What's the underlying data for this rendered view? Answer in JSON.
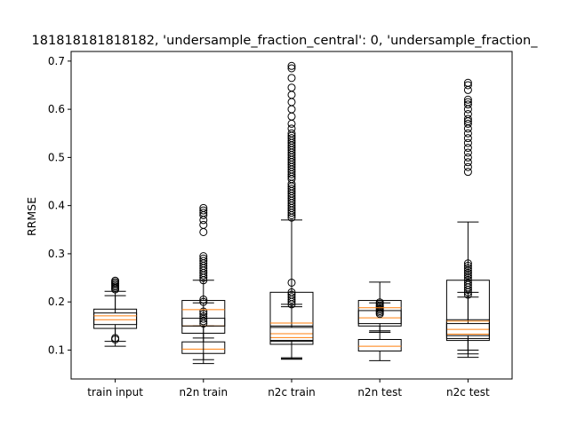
{
  "chart_data": {
    "type": "boxplot",
    "title": "181818181818182, 'undersample_fraction_central': 0, 'undersample_fraction_",
    "xlabel": "",
    "ylabel": "RRMSE",
    "ylim": [
      0.04,
      0.72
    ],
    "yticks": [
      "0.1",
      "0.2",
      "0.3",
      "0.4",
      "0.5",
      "0.6",
      "0.7"
    ],
    "categories": [
      "train input",
      "n2n train",
      "n2c train",
      "n2n test",
      "n2c test"
    ],
    "grid": false,
    "colors": {
      "box": "#000000",
      "median": "#ff7f0e",
      "flier": "#000000"
    },
    "boxes": [
      {
        "category": "train input",
        "layers": [
          {
            "whislo": 0.108,
            "q1": 0.145,
            "med": 0.163,
            "q3": 0.185,
            "whishi": 0.222,
            "fliers": [
              0.122,
              0.125,
              0.226,
              0.229,
              0.232,
              0.235,
              0.238,
              0.241,
              0.244
            ]
          },
          {
            "whislo": 0.118,
            "q1": 0.153,
            "med": 0.171,
            "q3": 0.177,
            "whishi": 0.213,
            "fliers": []
          }
        ]
      },
      {
        "category": "n2n train",
        "layers": [
          {
            "whislo": 0.072,
            "q1": 0.093,
            "med": 0.102,
            "q3": 0.117,
            "whishi": 0.15,
            "fliers": [
              0.155,
              0.16,
              0.165,
              0.17,
              0.175,
              0.18
            ]
          },
          {
            "whislo": 0.08,
            "q1": 0.135,
            "med": 0.15,
            "q3": 0.166,
            "whishi": 0.198,
            "fliers": [
              0.2,
              0.205,
              0.245,
              0.25,
              0.255,
              0.26,
              0.265,
              0.27,
              0.275,
              0.28,
              0.285,
              0.29,
              0.295,
              0.345,
              0.36,
              0.37,
              0.38,
              0.385,
              0.39,
              0.395
            ]
          },
          {
            "whislo": 0.125,
            "q1": 0.15,
            "med": 0.184,
            "q3": 0.203,
            "whishi": 0.245,
            "fliers": []
          }
        ]
      },
      {
        "category": "n2c train",
        "layers": [
          {
            "whislo": 0.081,
            "q1": 0.112,
            "med": 0.126,
            "q3": 0.147,
            "whishi": 0.19,
            "fliers": [
              0.195,
              0.2,
              0.205,
              0.21,
              0.215,
              0.22,
              0.24
            ]
          },
          {
            "whislo": 0.082,
            "q1": 0.118,
            "med": 0.134,
            "q3": 0.15,
            "whishi": 0.195,
            "fliers": []
          },
          {
            "whislo": 0.084,
            "q1": 0.12,
            "med": 0.156,
            "q3": 0.22,
            "whishi": 0.37,
            "fliers": [
              0.375,
              0.38,
              0.385,
              0.39,
              0.395,
              0.4,
              0.405,
              0.41,
              0.415,
              0.42,
              0.425,
              0.43,
              0.435,
              0.44,
              0.445,
              0.455,
              0.46,
              0.465,
              0.47,
              0.475,
              0.48,
              0.485,
              0.49,
              0.495,
              0.5,
              0.505,
              0.51,
              0.515,
              0.52,
              0.525,
              0.53,
              0.535,
              0.54,
              0.545,
              0.55,
              0.56,
              0.57,
              0.585,
              0.6,
              0.615,
              0.63,
              0.645,
              0.665,
              0.685,
              0.69
            ]
          }
        ]
      },
      {
        "category": "n2n test",
        "layers": [
          {
            "whislo": 0.078,
            "q1": 0.098,
            "med": 0.108,
            "q3": 0.122,
            "whishi": 0.137,
            "fliers": []
          },
          {
            "whislo": 0.137,
            "q1": 0.15,
            "med": 0.167,
            "q3": 0.182,
            "whishi": 0.198,
            "fliers": [
              0.175,
              0.178,
              0.181,
              0.184,
              0.187,
              0.19,
              0.193,
              0.196,
              0.199
            ]
          },
          {
            "whislo": 0.14,
            "q1": 0.155,
            "med": 0.188,
            "q3": 0.203,
            "whishi": 0.241,
            "fliers": []
          }
        ]
      },
      {
        "category": "n2c test",
        "layers": [
          {
            "whislo": 0.085,
            "q1": 0.12,
            "med": 0.133,
            "q3": 0.155,
            "whishi": 0.21,
            "fliers": [
              0.215,
              0.22,
              0.225,
              0.23,
              0.235,
              0.24,
              0.245,
              0.25
            ]
          },
          {
            "whislo": 0.092,
            "q1": 0.124,
            "med": 0.143,
            "q3": 0.163,
            "whishi": 0.22,
            "fliers": []
          },
          {
            "whislo": 0.1,
            "q1": 0.13,
            "med": 0.16,
            "q3": 0.245,
            "whishi": 0.366,
            "fliers": [
              0.255,
              0.26,
              0.265,
              0.27,
              0.275,
              0.28,
              0.47,
              0.48,
              0.49,
              0.5,
              0.51,
              0.52,
              0.53,
              0.54,
              0.55,
              0.56,
              0.57,
              0.575,
              0.58,
              0.59,
              0.6,
              0.61,
              0.615,
              0.62,
              0.64,
              0.65,
              0.655
            ]
          }
        ]
      }
    ]
  }
}
